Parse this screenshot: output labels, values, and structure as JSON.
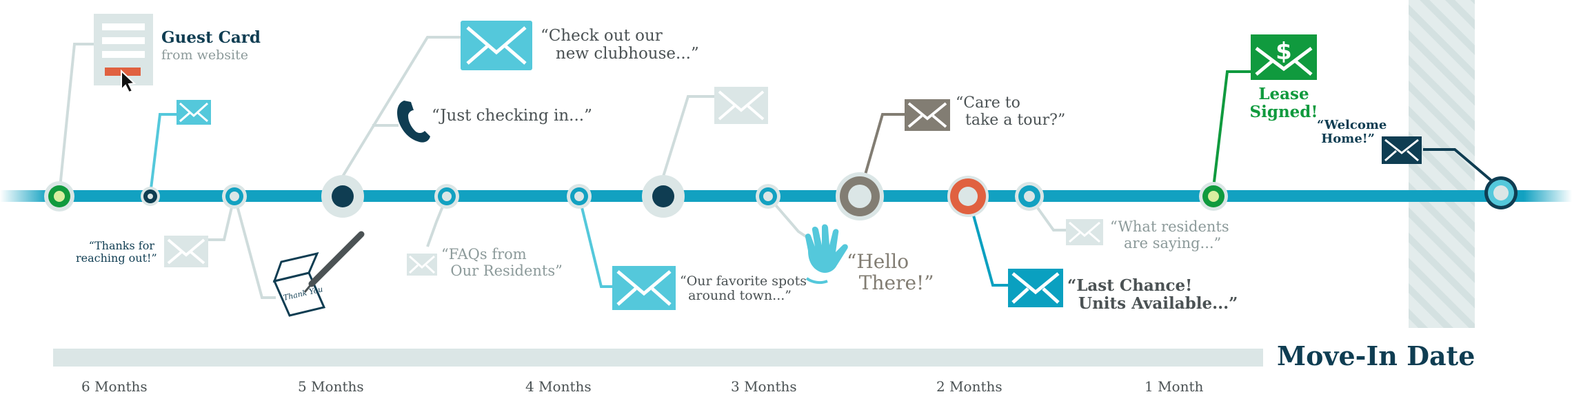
{
  "colors": {
    "timeline": "#12a1c1",
    "cyan": "#54c8db",
    "cyan_deep": "#0aa0c0",
    "navy": "#0f3d52",
    "light": "#dbe6e6",
    "light_line": "#cfdcdc",
    "grey": "#827d73",
    "green": "#109a3e",
    "orange": "#e06140"
  },
  "guest_card": {
    "title": "Guest Card",
    "subtitle": "from website"
  },
  "messages": {
    "clubhouse": "“Check out our\n   new clubhouse...”",
    "checking_in": "“Just checking in...”",
    "thanks": "“Thanks for\nreaching out!”",
    "thank_you_card": "Thank You",
    "faqs": "“FAQs from\n  Our Residents”",
    "favorite_spots": "“Our favorite spots\n  around town...”",
    "tour": "“Care to\n  take a tour?”",
    "hello": "“Hello\n  There!”",
    "last_chance": "“Last Chance!\n  Units Available...”",
    "residents": "“What residents\n   are saying...”",
    "lease": "Lease\nSigned!",
    "welcome": "“Welcome\n Home!”"
  },
  "move_in": {
    "label": "Move-In Date"
  },
  "months": [
    "6 Months",
    "5 Months",
    "4 Months",
    "3 Months",
    "2 Months",
    "1 Month"
  ]
}
